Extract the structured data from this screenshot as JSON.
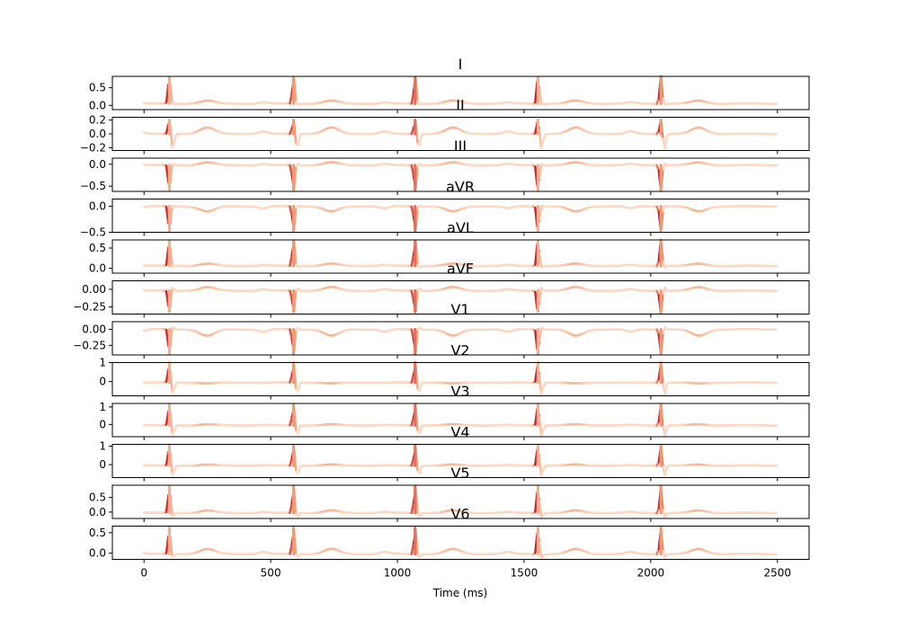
{
  "chart_data": {
    "type": "line",
    "xlabel": "Time (ms)",
    "xlim": [
      -125,
      2625
    ],
    "xticks": [
      0,
      500,
      1000,
      1500,
      2000,
      2500
    ],
    "xtick_labels": [
      "0",
      "500",
      "1000",
      "1500",
      "2000",
      "2500"
    ],
    "beats_ms": [
      100,
      590,
      1070,
      1555,
      2040
    ],
    "colormap": {
      "low": "#fde5d4",
      "mid": "#f2a07a",
      "high": "#c62d2d",
      "max": "#8f1f3f"
    },
    "panels": [
      {
        "title": "I",
        "ylim": [
          -0.12,
          0.82
        ],
        "yticks": [
          0.0,
          0.5
        ],
        "ytick_labels": [
          "0.0",
          "0.5"
        ],
        "baseline": 0.05,
        "qrs": 0.78,
        "t": 0.08,
        "s": -0.02
      },
      {
        "title": "II",
        "ylim": [
          -0.24,
          0.24
        ],
        "yticks": [
          -0.2,
          0.0,
          0.2
        ],
        "ytick_labels": [
          "−0.2",
          "0.0",
          "0.2"
        ],
        "baseline": 0.0,
        "qrs": 0.2,
        "t": 0.09,
        "s": -0.22
      },
      {
        "title": "III",
        "ylim": [
          -0.62,
          0.14
        ],
        "yticks": [
          -0.5,
          0.0
        ],
        "ytick_labels": [
          "−0.5",
          "0.0"
        ],
        "baseline": -0.02,
        "qrs": -0.58,
        "t": 0.06,
        "s": 0.04
      },
      {
        "title": "aVR",
        "ylim": [
          -0.5,
          0.14
        ],
        "yticks": [
          -0.5,
          0.0
        ],
        "ytick_labels": [
          "−0.5",
          "0.0"
        ],
        "baseline": 0.0,
        "qrs": -0.48,
        "t": -0.1,
        "s": 0.02
      },
      {
        "title": "aVL",
        "ylim": [
          -0.12,
          0.7
        ],
        "yticks": [
          0.0,
          0.5
        ],
        "ytick_labels": [
          "0.0",
          "0.5"
        ],
        "baseline": 0.06,
        "qrs": 0.66,
        "t": 0.05,
        "s": -0.04
      },
      {
        "title": "aVF",
        "ylim": [
          -0.35,
          0.12
        ],
        "yticks": [
          -0.25,
          0.0
        ],
        "ytick_labels": [
          "−0.25",
          "0.00"
        ],
        "baseline": -0.02,
        "qrs": -0.32,
        "t": 0.05,
        "s": 0.05
      },
      {
        "title": "V1",
        "ylim": [
          -0.4,
          0.12
        ],
        "yticks": [
          -0.25,
          0.0
        ],
        "ytick_labels": [
          "−0.25",
          "0.00"
        ],
        "baseline": 0.0,
        "qrs": -0.38,
        "t": -0.1,
        "s": 0.04
      },
      {
        "title": "V2",
        "ylim": [
          -0.75,
          1.0
        ],
        "yticks": [
          0,
          1
        ],
        "ytick_labels": [
          "0",
          "1"
        ],
        "baseline": -0.05,
        "qrs": 1.0,
        "t": -0.05,
        "s": -0.6
      },
      {
        "title": "V3",
        "ylim": [
          -0.7,
          1.2
        ],
        "yticks": [
          0,
          1
        ],
        "ytick_labels": [
          "0",
          "1"
        ],
        "baseline": -0.05,
        "qrs": 1.15,
        "t": 0.05,
        "s": -0.6
      },
      {
        "title": "V4",
        "ylim": [
          -0.7,
          1.1
        ],
        "yticks": [
          0,
          1
        ],
        "ytick_labels": [
          "0",
          "1"
        ],
        "baseline": -0.05,
        "qrs": 1.05,
        "t": 0.05,
        "s": -0.55
      },
      {
        "title": "V5",
        "ylim": [
          -0.22,
          0.92
        ],
        "yticks": [
          0.0,
          0.5
        ],
        "ytick_labels": [
          "0.0",
          "0.5"
        ],
        "baseline": -0.03,
        "qrs": 0.88,
        "t": 0.08,
        "s": -0.15
      },
      {
        "title": "V6",
        "ylim": [
          -0.15,
          0.66
        ],
        "yticks": [
          0.0,
          0.5
        ],
        "ytick_labels": [
          "0.0",
          "0.5"
        ],
        "baseline": -0.02,
        "qrs": 0.62,
        "t": 0.12,
        "s": -0.1
      }
    ]
  }
}
